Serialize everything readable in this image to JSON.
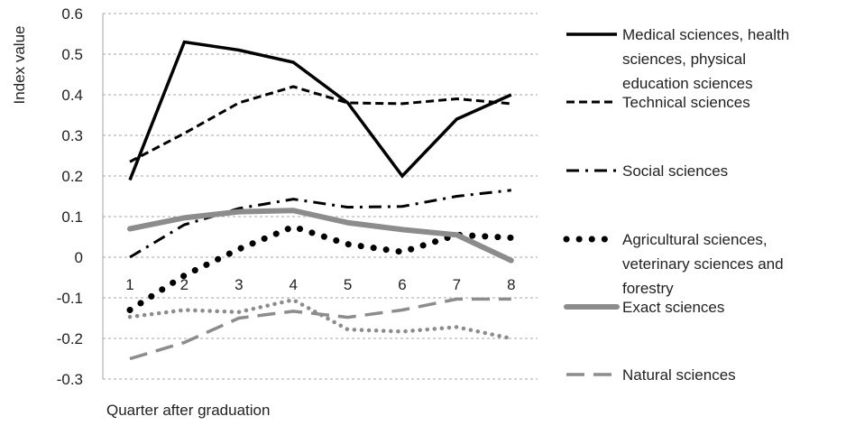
{
  "chart_data": {
    "type": "line",
    "xlabel": "Quarter after graduation",
    "ylabel": "Index value",
    "categories": [
      "1",
      "2",
      "3",
      "4",
      "5",
      "6",
      "7",
      "8"
    ],
    "yticks": [
      "0.6",
      "0.5",
      "0.4",
      "0.3",
      "0.2",
      "0.1",
      "0",
      "-0.1",
      "-0.2",
      "-0.3"
    ],
    "ylim": [
      -0.3,
      0.6
    ],
    "grid": "horizontal dashed",
    "legend_position": "right",
    "series": [
      {
        "name": "Medical sciences, health sciences, physical education sciences",
        "legend_lines": [
          "Medical sciences, health",
          "sciences, physical",
          "education sciences"
        ],
        "values": [
          0.19,
          0.53,
          0.51,
          0.48,
          0.38,
          0.2,
          0.34,
          0.4
        ],
        "color": "#000000",
        "style": "solid"
      },
      {
        "name": "Technical sciences",
        "legend_lines": [
          "Technical sciences"
        ],
        "values": [
          0.235,
          0.305,
          0.38,
          0.42,
          0.38,
          0.378,
          0.39,
          0.378
        ],
        "color": "#000000",
        "style": "dash"
      },
      {
        "name": "Social sciences",
        "legend_lines": [
          "Social sciences"
        ],
        "values": [
          0.0,
          0.08,
          0.12,
          0.143,
          0.123,
          0.125,
          0.15,
          0.165
        ],
        "color": "#000000",
        "style": "dashdot"
      },
      {
        "name": "Agricultural sciences, veterinary sciences and forestry",
        "legend_lines": [
          "Agricultural sciences,",
          "veterinary sciences and",
          "forestry"
        ],
        "values": [
          -0.13,
          -0.045,
          0.02,
          0.075,
          0.032,
          0.013,
          0.055,
          0.048
        ],
        "color": "#000000",
        "style": "dot"
      },
      {
        "name": "Exact sciences",
        "legend_lines": [
          "Exact sciences"
        ],
        "values": [
          0.07,
          0.097,
          0.112,
          0.115,
          0.085,
          0.068,
          0.055,
          -0.008
        ],
        "color": "#8c8c8c",
        "style": "solid-thick"
      },
      {
        "name": "Natural sciences",
        "legend_lines": [
          "Natural sciences"
        ],
        "values": [
          -0.25,
          -0.21,
          -0.15,
          -0.133,
          -0.148,
          -0.13,
          -0.103,
          -0.103
        ],
        "color": "#8c8c8c",
        "style": "longdash"
      },
      {
        "name": "",
        "legend_lines": [],
        "values": [
          -0.147,
          -0.13,
          -0.135,
          -0.105,
          -0.178,
          -0.183,
          -0.172,
          -0.2
        ],
        "color": "#8c8c8c",
        "style": "dot-small"
      }
    ]
  }
}
